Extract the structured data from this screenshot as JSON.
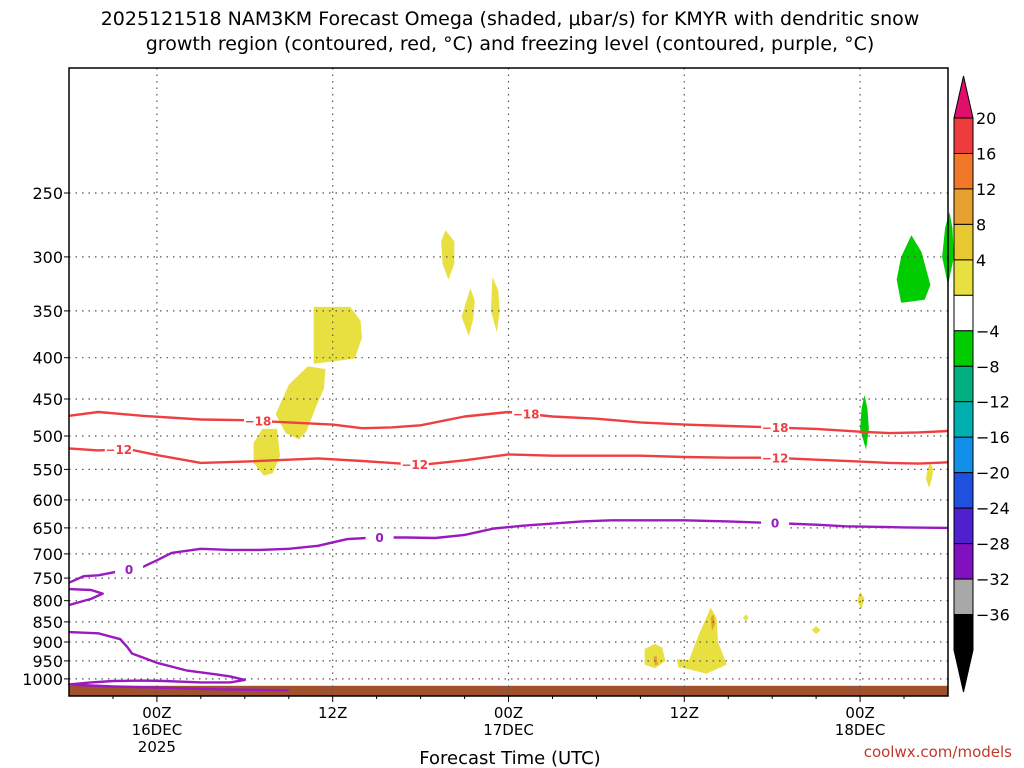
{
  "chart_data": {
    "type": "contour",
    "title_line1": "2025121518 NAM3KM Forecast Omega (shaded, μbar/s) for KMYR with dendritic snow",
    "title_line2": "growth region (contoured, red, °C) and freezing level (contoured, purple, °C)",
    "xlabel": "Forecast Time (UTC)",
    "credit": "coolwx.com/models",
    "y_axis": {
      "scale": "log-pressure",
      "range": [
        1050,
        175
      ],
      "ticks": [
        250,
        300,
        350,
        400,
        450,
        500,
        550,
        600,
        650,
        700,
        750,
        800,
        850,
        900,
        950,
        1000
      ]
    },
    "x_axis": {
      "range_hours": [
        0,
        60
      ],
      "ticks": [
        {
          "hour": 6,
          "line1": "00Z",
          "line2": "16DEC",
          "line3": "2025"
        },
        {
          "hour": 18,
          "line1": "12Z",
          "line2": "",
          "line3": ""
        },
        {
          "hour": 30,
          "line1": "00Z",
          "line2": "17DEC",
          "line3": ""
        },
        {
          "hour": 42,
          "line1": "12Z",
          "line2": "",
          "line3": ""
        },
        {
          "hour": 54,
          "line1": "00Z",
          "line2": "18DEC",
          "line3": ""
        }
      ]
    },
    "colorbar": {
      "levels": [
        {
          "label": "20",
          "color": "#ee3b3b"
        },
        {
          "label": "16",
          "color": "#f07828"
        },
        {
          "label": "12",
          "color": "#e8a030"
        },
        {
          "label": "8",
          "color": "#e8c830"
        },
        {
          "label": "4",
          "color": "#e8e040"
        },
        {
          "label": "",
          "color": "#ffffff"
        },
        {
          "label": "−4",
          "color": "#00cc00"
        },
        {
          "label": "−8",
          "color": "#00b080"
        },
        {
          "label": "−12",
          "color": "#00b0b0"
        },
        {
          "label": "−16",
          "color": "#1090e8"
        },
        {
          "label": "−20",
          "color": "#2050e0"
        },
        {
          "label": "−24",
          "color": "#5020d0"
        },
        {
          "label": "−28",
          "color": "#8010c0"
        },
        {
          "label": "−32",
          "color": "#a8a8a8"
        },
        {
          "label": "−36",
          "color": "#000000"
        }
      ],
      "top_color": "#e0106a",
      "bottom_color": "#000000"
    },
    "contours": [
      {
        "name": "-18",
        "color": "#ee4040",
        "label": "−18",
        "points": [
          [
            0,
            472
          ],
          [
            2,
            467
          ],
          [
            5,
            472
          ],
          [
            9,
            477
          ],
          [
            12,
            478
          ],
          [
            15,
            481
          ],
          [
            18,
            484
          ],
          [
            20,
            489
          ],
          [
            22,
            488
          ],
          [
            24,
            485
          ],
          [
            27,
            473
          ],
          [
            30,
            467
          ],
          [
            33,
            473
          ],
          [
            36,
            476
          ],
          [
            39,
            481
          ],
          [
            42,
            484
          ],
          [
            45,
            486
          ],
          [
            48,
            488
          ],
          [
            51,
            490
          ],
          [
            54,
            494
          ],
          [
            56,
            496
          ],
          [
            58,
            495
          ],
          [
            60,
            493
          ]
        ],
        "label_hours": [
          12.9,
          31.2,
          48.2
        ]
      },
      {
        "name": "-12",
        "color": "#ee4040",
        "label": "−12",
        "points": [
          [
            0,
            518
          ],
          [
            2,
            521
          ],
          [
            4,
            519
          ],
          [
            6,
            528
          ],
          [
            7,
            532
          ],
          [
            9,
            540
          ],
          [
            12,
            538
          ],
          [
            14,
            536
          ],
          [
            17,
            533
          ],
          [
            20,
            537
          ],
          [
            22,
            540
          ],
          [
            24,
            543
          ],
          [
            27,
            536
          ],
          [
            30,
            527
          ],
          [
            33,
            529
          ],
          [
            36,
            529
          ],
          [
            39,
            529
          ],
          [
            42,
            531
          ],
          [
            45,
            532
          ],
          [
            48,
            532
          ],
          [
            51,
            535
          ],
          [
            54,
            538
          ],
          [
            56,
            540
          ],
          [
            58,
            541
          ],
          [
            60,
            539
          ]
        ],
        "label_hours": [
          3.4,
          23.6,
          48.2
        ]
      },
      {
        "name": "0a",
        "color": "#9a1ac0",
        "label": "0",
        "points": [
          [
            0,
            760
          ],
          [
            1,
            746
          ],
          [
            2,
            744
          ],
          [
            3,
            738
          ],
          [
            4,
            733
          ],
          [
            5,
            727
          ],
          [
            6,
            713
          ],
          [
            7,
            698
          ],
          [
            9,
            690
          ],
          [
            11,
            692
          ],
          [
            13,
            692
          ],
          [
            15,
            690
          ],
          [
            17,
            684
          ],
          [
            19,
            671
          ],
          [
            21,
            668
          ],
          [
            23,
            668
          ],
          [
            25,
            669
          ],
          [
            27,
            663
          ],
          [
            29,
            651
          ],
          [
            31,
            646
          ],
          [
            33,
            642
          ],
          [
            35,
            638
          ],
          [
            37,
            636
          ],
          [
            39,
            636
          ],
          [
            42,
            636
          ],
          [
            45,
            638
          ],
          [
            48,
            641
          ],
          [
            51,
            644
          ],
          [
            53,
            647
          ],
          [
            55,
            648
          ],
          [
            57,
            649
          ],
          [
            60,
            650
          ]
        ],
        "label_hours": [
          4.1,
          21.2,
          48.2
        ]
      },
      {
        "name": "0b",
        "color": "#9a1ac0",
        "label": "",
        "points": [
          [
            0,
            774
          ],
          [
            1.5,
            776
          ],
          [
            2.3,
            784
          ],
          [
            1.5,
            796
          ],
          [
            0,
            810
          ]
        ],
        "label_hours": []
      },
      {
        "name": "0c",
        "color": "#9a1ac0",
        "label": "",
        "points": [
          [
            0,
            875
          ],
          [
            2,
            878
          ],
          [
            3.5,
            893
          ],
          [
            4,
            914
          ],
          [
            4.3,
            930
          ],
          [
            6,
            955
          ],
          [
            8,
            976
          ],
          [
            10,
            987
          ],
          [
            11,
            993
          ],
          [
            12,
            1003
          ],
          [
            11,
            1010
          ],
          [
            9,
            1010
          ],
          [
            6.5,
            1006
          ],
          [
            5,
            1005
          ],
          [
            3,
            1006
          ],
          [
            1.5,
            1010
          ],
          [
            0,
            1016
          ],
          [
            3,
            1022
          ],
          [
            7,
            1026
          ],
          [
            10,
            1030
          ],
          [
            15,
            1033
          ]
        ],
        "label_hours": []
      }
    ],
    "omega_regions": [
      {
        "color": "#e8e040",
        "points": [
          [
            25.7,
            278
          ],
          [
            26.3,
            287
          ],
          [
            26.3,
            306
          ],
          [
            25.9,
            320
          ],
          [
            25.5,
            306
          ],
          [
            25.4,
            287
          ]
        ]
      },
      {
        "color": "#e8e040",
        "points": [
          [
            27.4,
            328
          ],
          [
            27.7,
            340
          ],
          [
            27.6,
            358
          ],
          [
            27.3,
            376
          ],
          [
            26.8,
            356
          ]
        ]
      },
      {
        "color": "#e8e040",
        "points": [
          [
            28.9,
            318
          ],
          [
            29.3,
            330
          ],
          [
            29.4,
            350
          ],
          [
            29.2,
            372
          ],
          [
            28.8,
            350
          ]
        ]
      },
      {
        "color": "#e8e040",
        "points": [
          [
            16.7,
            346
          ],
          [
            19.2,
            346
          ],
          [
            19.9,
            360
          ],
          [
            20.0,
            378
          ],
          [
            19.5,
            401
          ],
          [
            16.7,
            407
          ]
        ]
      },
      {
        "color": "#e8e040",
        "points": [
          [
            16.3,
            410
          ],
          [
            17.5,
            413
          ],
          [
            17.4,
            437
          ],
          [
            16.9,
            458
          ],
          [
            16.2,
            494
          ],
          [
            15.7,
            505
          ],
          [
            14.8,
            496
          ],
          [
            14.1,
            470
          ],
          [
            15.0,
            432
          ]
        ]
      },
      {
        "color": "#e8e040",
        "points": [
          [
            13.2,
            490
          ],
          [
            14.2,
            490
          ],
          [
            14.4,
            530
          ],
          [
            13.9,
            556
          ],
          [
            13.3,
            560
          ],
          [
            12.6,
            540
          ],
          [
            12.6,
            510
          ]
        ]
      },
      {
        "color": "#00cc00",
        "points": [
          [
            57.5,
            282
          ],
          [
            58.2,
            296
          ],
          [
            58.8,
            325
          ],
          [
            58.4,
            339
          ],
          [
            56.8,
            342
          ],
          [
            56.5,
            320
          ],
          [
            56.8,
            300
          ]
        ]
      },
      {
        "color": "#00cc00",
        "points": [
          [
            60.1,
            264
          ],
          [
            60.3,
            276
          ],
          [
            60.4,
            300
          ],
          [
            60.0,
            325
          ],
          [
            59.6,
            300
          ],
          [
            59.8,
            276
          ]
        ]
      },
      {
        "color": "#00cc00",
        "points": [
          [
            54.3,
            445
          ],
          [
            54.5,
            462
          ],
          [
            54.6,
            490
          ],
          [
            54.4,
            520
          ],
          [
            54.0,
            490
          ],
          [
            54.1,
            462
          ]
        ]
      },
      {
        "color": "#e8e040",
        "points": [
          [
            58.8,
            540
          ],
          [
            59.0,
            550
          ],
          [
            58.9,
            565
          ],
          [
            58.7,
            580
          ],
          [
            58.5,
            565
          ],
          [
            58.6,
            550
          ]
        ]
      },
      {
        "color": "#e8e040",
        "points": [
          [
            54.0,
            780
          ],
          [
            54.3,
            795
          ],
          [
            54.1,
            820
          ],
          [
            53.8,
            800
          ]
        ]
      },
      {
        "color": "#e8e040",
        "points": [
          [
            51.0,
            860
          ],
          [
            51.3,
            870
          ],
          [
            51.0,
            880
          ],
          [
            50.7,
            870
          ]
        ]
      },
      {
        "color": "#e8e040",
        "points": [
          [
            46.2,
            832
          ],
          [
            46.4,
            840
          ],
          [
            46.2,
            848
          ],
          [
            46.0,
            840
          ]
        ]
      },
      {
        "color": "#00cc00",
        "points": [
          [
            44.0,
            875
          ],
          [
            44.2,
            882
          ],
          [
            44.0,
            890
          ],
          [
            43.8,
            882
          ]
        ]
      },
      {
        "color": "#e8e040",
        "points": [
          [
            42.0,
            970
          ],
          [
            42.3,
            950
          ],
          [
            43.0,
            880
          ],
          [
            43.8,
            816
          ],
          [
            44.2,
            840
          ],
          [
            44.3,
            900
          ],
          [
            44.9,
            960
          ],
          [
            43.5,
            985
          ]
        ]
      },
      {
        "color": "#e8e040",
        "points": [
          [
            41.5,
            945
          ],
          [
            43.0,
            950
          ],
          [
            42.5,
            970
          ],
          [
            41.6,
            968
          ]
        ]
      },
      {
        "color": "#e8e040",
        "points": [
          [
            39.3,
            918
          ],
          [
            40.0,
            905
          ],
          [
            40.5,
            915
          ],
          [
            40.7,
            950
          ],
          [
            40.0,
            970
          ],
          [
            39.3,
            960
          ]
        ]
      },
      {
        "color": "#e8a030",
        "points": [
          [
            39.9,
            940
          ],
          [
            40.1,
            935
          ],
          [
            40.2,
            960
          ],
          [
            40.0,
            962
          ]
        ]
      },
      {
        "color": "#e8a030",
        "points": [
          [
            43.8,
            840
          ],
          [
            44.0,
            832
          ],
          [
            44.1,
            855
          ],
          [
            43.9,
            872
          ]
        ]
      }
    ],
    "ground": {
      "color": "#a0522d",
      "from_hour": 0,
      "to_hour": 60,
      "pressure": 1020
    }
  }
}
